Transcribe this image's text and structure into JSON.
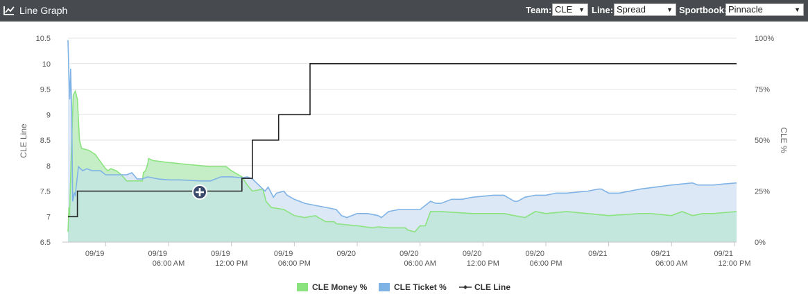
{
  "header": {
    "title": "Line Graph",
    "icon": "line-chart-icon",
    "team_label": "Team:",
    "team_value": "CLE",
    "line_label": "Line:",
    "line_value": "Spread",
    "sportbook_label": "Sportbook:",
    "sportbook_value": "Pinnacle"
  },
  "colors": {
    "money": "#8be37f",
    "money_fill": "#c6eec6",
    "ticket": "#7fb3e6",
    "ticket_fill": "#dce8f6",
    "overlap_fill": "#c3e6dd",
    "line": "#222222",
    "header_bg": "#474a4f"
  },
  "chart_data": {
    "type": "line",
    "x_axis": {
      "ticks": [
        {
          "date": "09/19",
          "time": ""
        },
        {
          "date": "09/19",
          "time": "06:00 AM"
        },
        {
          "date": "09/19",
          "time": "12:00 PM"
        },
        {
          "date": "09/19",
          "time": "06:00 PM"
        },
        {
          "date": "09/20",
          "time": ""
        },
        {
          "date": "09/20",
          "time": "06:00 AM"
        },
        {
          "date": "09/20",
          "time": "12:00 PM"
        },
        {
          "date": "09/20",
          "time": "06:00 PM"
        },
        {
          "date": "09/21",
          "time": ""
        },
        {
          "date": "09/21",
          "time": "06:00 AM"
        },
        {
          "date": "09/21",
          "time": "12:00 PM"
        }
      ],
      "range_hours": [
        -3.6,
        60.2
      ]
    },
    "y_left": {
      "label": "CLE Line",
      "range": [
        6.5,
        10.5
      ],
      "ticks": [
        "6.5",
        "7",
        "7.5",
        "8",
        "8.5",
        "9",
        "9.5",
        "10",
        "10.5"
      ]
    },
    "y_right": {
      "label": "CLE %",
      "range": [
        0,
        100
      ],
      "ticks": [
        "0%",
        "25%",
        "50%",
        "75%",
        "100%"
      ]
    },
    "grid": true,
    "legend_position": "bottom-center",
    "series": [
      {
        "name": "CLE Money %",
        "axis": "right",
        "points": [
          [
            -3.6,
            5
          ],
          [
            -3.5,
            17
          ],
          [
            -3.45,
            13
          ],
          [
            -3.3,
            40
          ],
          [
            -3.1,
            72
          ],
          [
            -2.9,
            74
          ],
          [
            -2.7,
            70
          ],
          [
            -2.5,
            50
          ],
          [
            -2.3,
            46
          ],
          [
            -1.6,
            45
          ],
          [
            -1.0,
            43
          ],
          [
            -0.3,
            38
          ],
          [
            0.0,
            36
          ],
          [
            0.2,
            35
          ],
          [
            0.5,
            36
          ],
          [
            1.0,
            35
          ],
          [
            1.5,
            33
          ],
          [
            2.0,
            30
          ],
          [
            3.0,
            30
          ],
          [
            3.5,
            30
          ],
          [
            3.6,
            34
          ],
          [
            3.8,
            35
          ],
          [
            4.0,
            38
          ],
          [
            4.1,
            41
          ],
          [
            4.5,
            40
          ],
          [
            6,
            39
          ],
          [
            8,
            38
          ],
          [
            10,
            37
          ],
          [
            11,
            37
          ],
          [
            11.5,
            37
          ],
          [
            12,
            35
          ],
          [
            13,
            32
          ],
          [
            13.5,
            28
          ],
          [
            14,
            25
          ],
          [
            15,
            26
          ],
          [
            15.3,
            20
          ],
          [
            15.8,
            17
          ],
          [
            17,
            16
          ],
          [
            18,
            13
          ],
          [
            19,
            12
          ],
          [
            20,
            13
          ],
          [
            20.3,
            12
          ],
          [
            21,
            10
          ],
          [
            21.8,
            10
          ],
          [
            22,
            9
          ],
          [
            24,
            8
          ],
          [
            25.5,
            7
          ],
          [
            26,
            7.5
          ],
          [
            27,
            7
          ],
          [
            28,
            7
          ],
          [
            28.6,
            7
          ],
          [
            28.8,
            6
          ],
          [
            29.5,
            5
          ],
          [
            30,
            8
          ],
          [
            30.5,
            8
          ],
          [
            31,
            15
          ],
          [
            32,
            15
          ],
          [
            35,
            14
          ],
          [
            38,
            14
          ],
          [
            39,
            13
          ],
          [
            40,
            12
          ],
          [
            41,
            15
          ],
          [
            42,
            14
          ],
          [
            44,
            15
          ],
          [
            46,
            14
          ],
          [
            48,
            13
          ],
          [
            51,
            14
          ],
          [
            52,
            14
          ],
          [
            54,
            13
          ],
          [
            55,
            15
          ],
          [
            56,
            13
          ],
          [
            57,
            14
          ],
          [
            58,
            14
          ],
          [
            60.2,
            15
          ]
        ]
      },
      {
        "name": "CLE Ticket %",
        "axis": "right",
        "points": [
          [
            -3.6,
            99
          ],
          [
            -3.5,
            80
          ],
          [
            -3.42,
            70
          ],
          [
            -3.35,
            85
          ],
          [
            -3.25,
            66
          ],
          [
            -3.15,
            20
          ],
          [
            -3.0,
            24
          ],
          [
            -2.9,
            23
          ],
          [
            -2.8,
            28
          ],
          [
            -2.6,
            37
          ],
          [
            -2.2,
            35
          ],
          [
            -1.8,
            36
          ],
          [
            -1.3,
            35
          ],
          [
            -0.5,
            35
          ],
          [
            0.0,
            33
          ],
          [
            0.5,
            33
          ],
          [
            1.0,
            33
          ],
          [
            2.0,
            33
          ],
          [
            2.5,
            34
          ],
          [
            3.0,
            31
          ],
          [
            3.5,
            31
          ],
          [
            4.0,
            32
          ],
          [
            5,
            31
          ],
          [
            6,
            30.5
          ],
          [
            7,
            30.5
          ],
          [
            8,
            30.3
          ],
          [
            9,
            30
          ],
          [
            10,
            30
          ],
          [
            11,
            32
          ],
          [
            12,
            32
          ],
          [
            13,
            31.5
          ],
          [
            13.5,
            32
          ],
          [
            14,
            31
          ],
          [
            15,
            26
          ],
          [
            15.2,
            25
          ],
          [
            15.5,
            27
          ],
          [
            16,
            22
          ],
          [
            16.3,
            24
          ],
          [
            17,
            25
          ],
          [
            17.3,
            23
          ],
          [
            18,
            21
          ],
          [
            19,
            19
          ],
          [
            20,
            18
          ],
          [
            21,
            17
          ],
          [
            21.5,
            16.5
          ],
          [
            22,
            16
          ],
          [
            22.5,
            13
          ],
          [
            23,
            12
          ],
          [
            24,
            14
          ],
          [
            25,
            14
          ],
          [
            26,
            13
          ],
          [
            26.3,
            12
          ],
          [
            27,
            15
          ],
          [
            28,
            16
          ],
          [
            29,
            16
          ],
          [
            29.5,
            16
          ],
          [
            30,
            16
          ],
          [
            31,
            20
          ],
          [
            31.5,
            19
          ],
          [
            32,
            19
          ],
          [
            33,
            21
          ],
          [
            34,
            21
          ],
          [
            35,
            22
          ],
          [
            37,
            23
          ],
          [
            38,
            23
          ],
          [
            39,
            20
          ],
          [
            39.3,
            20
          ],
          [
            40,
            22
          ],
          [
            41,
            23
          ],
          [
            42,
            23
          ],
          [
            43,
            24
          ],
          [
            44,
            24
          ],
          [
            46,
            25
          ],
          [
            47,
            26
          ],
          [
            47.3,
            26
          ],
          [
            48,
            24
          ],
          [
            49,
            24
          ],
          [
            51,
            26
          ],
          [
            54,
            28
          ],
          [
            56,
            29
          ],
          [
            56.5,
            28
          ],
          [
            58,
            28
          ],
          [
            59,
            28.5
          ],
          [
            60.2,
            29
          ]
        ]
      },
      {
        "name": "CLE Line",
        "axis": "left",
        "points": [
          [
            -3.6,
            7
          ],
          [
            -2.7,
            7
          ],
          [
            -2.7,
            7.5
          ],
          [
            13,
            7.5
          ],
          [
            13,
            7.75
          ],
          [
            14,
            7.75
          ],
          [
            14,
            8.5
          ],
          [
            16.5,
            8.5
          ],
          [
            16.5,
            9
          ],
          [
            19.5,
            9
          ],
          [
            19.5,
            10
          ],
          [
            60.2,
            10
          ]
        ]
      }
    ]
  }
}
